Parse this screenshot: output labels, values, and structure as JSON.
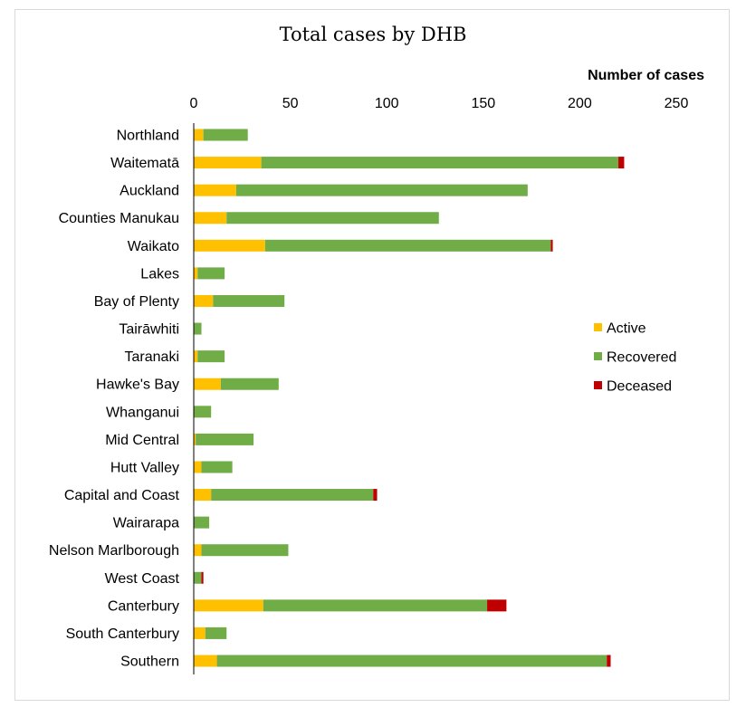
{
  "chart_data": {
    "type": "bar",
    "orientation": "horizontal",
    "stacked": true,
    "title": "Total cases by DHB",
    "xlabel": "Number of cases",
    "ylabel": "",
    "xlim": [
      0,
      250
    ],
    "xticks": [
      0,
      50,
      100,
      150,
      200,
      250
    ],
    "axis_position": "top",
    "grid": false,
    "legend_position": "right",
    "categories": [
      "Northland",
      "Waitematā",
      "Auckland",
      "Counties Manukau",
      "Waikato",
      "Lakes",
      "Bay of Plenty",
      "Tairāwhiti",
      "Taranaki",
      "Hawke's Bay",
      "Whanganui",
      "Mid Central",
      "Hutt Valley",
      "Capital and Coast",
      "Wairarapa",
      "Nelson Marlborough",
      "West Coast",
      "Canterbury",
      "South Canterbury",
      "Southern"
    ],
    "series": [
      {
        "name": "Active",
        "color": "#ffc000",
        "values": [
          5,
          35,
          22,
          17,
          37,
          2,
          10,
          0,
          2,
          14,
          0,
          1,
          4,
          9,
          0,
          4,
          0,
          36,
          6,
          12
        ]
      },
      {
        "name": "Recovered",
        "color": "#70ad47",
        "values": [
          23,
          185,
          151,
          110,
          148,
          14,
          37,
          4,
          14,
          30,
          9,
          30,
          16,
          84,
          8,
          45,
          4,
          116,
          11,
          202
        ]
      },
      {
        "name": "Deceased",
        "color": "#c00000",
        "values": [
          0,
          3,
          0,
          0,
          1,
          0,
          0,
          0,
          0,
          0,
          0,
          0,
          0,
          2,
          0,
          0,
          1,
          10,
          0,
          2
        ]
      }
    ]
  }
}
